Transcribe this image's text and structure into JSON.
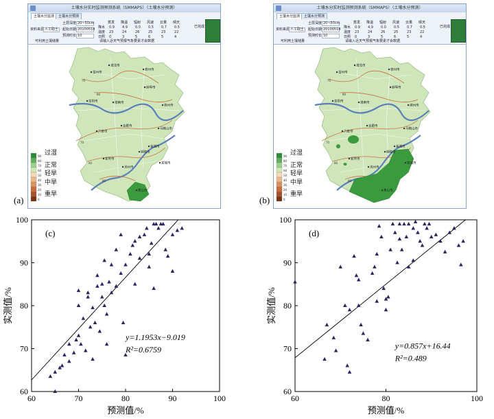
{
  "map_panels": [
    {
      "panel_label": "(a)",
      "window_title": "土壤水分实时监测预测系统（SMMAPS）（土壤水分预测）",
      "tabs": [
        "土壤水分监测",
        "土壤水分预测"
      ],
      "source_label": "资料来源",
      "source_value": "人工取土",
      "soil_depth_label": "土层深度",
      "soil_depth_value": "20~50cm",
      "start_date_label": "起始日期",
      "start_date_value": "20100518",
      "forecast_len_label": "预测时长",
      "forecast_len_value": "10",
      "weather_rows": [
        {
          "label": "降水",
          "values": [
            "0.9",
            "4.9",
            "0.0",
            "0.5",
            "0.7",
            "0.5"
          ]
        },
        {
          "label": "温度",
          "values": [
            "23",
            "24",
            "26",
            "25",
            "23",
            "22"
          ]
        },
        {
          "label": "日照",
          "values": [
            "0",
            "3",
            "5",
            "6",
            "5",
            "4"
          ]
        }
      ],
      "weather_headers": [
        "蒸发",
        "降温",
        "辐射",
        "风速",
        "云量",
        "晴天"
      ],
      "side_button": "已完成",
      "status_text": "请输入近天气预报气象要素才会数据",
      "status_left": "可利用土壤储量",
      "has_big_green": false
    },
    {
      "panel_label": "(b)",
      "window_title": "土壤水分实时监测预测系统（SMMAPS）（土壤水分预测）",
      "tabs": [
        "土壤水分监测",
        "土壤水分预测"
      ],
      "source_label": "资料来源",
      "source_value": "人工取土",
      "soil_depth_label": "土层深度",
      "soil_depth_value": "20~50cm",
      "start_date_label": "起始日期",
      "start_date_value": "20100518",
      "forecast_len_label": "预测时长",
      "forecast_len_value": "10",
      "weather_rows": [
        {
          "label": "降水",
          "values": [
            "0.9",
            "4.9",
            "0.0",
            "0.5",
            "0.7",
            "0.5"
          ]
        },
        {
          "label": "温度",
          "values": [
            "23",
            "24",
            "26",
            "25",
            "23",
            "22"
          ]
        },
        {
          "label": "日照",
          "values": [
            "0",
            "3",
            "5",
            "6",
            "5",
            "4"
          ]
        }
      ],
      "weather_headers": [
        "蒸发",
        "降温",
        "辐射",
        "风速",
        "云量",
        "晴天"
      ],
      "side_button": "已完成",
      "status_text": "请输入近天气预报气象要素才会数据",
      "status_left": "可利用土壤储量",
      "has_big_green": true
    }
  ],
  "legend": {
    "numbers": [
      "90",
      "80",
      "70",
      "60",
      "50",
      "40",
      "30",
      "20",
      "10",
      "0"
    ],
    "classes": [
      "过湿",
      "正常",
      "轻旱",
      "中旱",
      "重旱"
    ],
    "colors": [
      "#2e8b3a",
      "#5db05a",
      "#9fd08a",
      "#cfe8b5",
      "#f3d9b5",
      "#eab98a",
      "#d9925e",
      "#c76d3a",
      "#a8502a",
      "#7a3412"
    ]
  },
  "map_text": {
    "isolines": [
      "70",
      "70",
      "80",
      "80",
      "80"
    ],
    "cities": [
      "淮北市",
      "宿州市",
      "蚌埠市",
      "阜阳市",
      "淮南市",
      "滁州市",
      "六安市",
      "合肥市",
      "马鞍山市",
      "芜湖市",
      "安庆市",
      "池州市",
      "铜陵市",
      "宣城市",
      "黄山市",
      "亳州市"
    ]
  },
  "chart_data": [
    {
      "panel_label": "(c)",
      "type": "scatter",
      "xlabel": "预测值/%",
      "ylabel": "实测值/%",
      "xlim": [
        60,
        100
      ],
      "ylim": [
        60,
        100
      ],
      "xticks": [
        60,
        70,
        80,
        90,
        100
      ],
      "yticks": [
        60,
        70,
        80,
        90,
        100
      ],
      "equation": "y=1.1953x−9.019",
      "r2": "R²=0.6759",
      "fit": {
        "slope": 1.1953,
        "intercept": -9.019
      },
      "points": [
        [
          64,
          63.5
        ],
        [
          65,
          60
        ],
        [
          65,
          64.5
        ],
        [
          66,
          65.5
        ],
        [
          66.5,
          66
        ],
        [
          67,
          68.5
        ],
        [
          68,
          71
        ],
        [
          68,
          67
        ],
        [
          69,
          69
        ],
        [
          69.5,
          72
        ],
        [
          70,
          73
        ],
        [
          70,
          80
        ],
        [
          70,
          83.5
        ],
        [
          70.5,
          71
        ],
        [
          71,
          77
        ],
        [
          71.5,
          69.5
        ],
        [
          72,
          83
        ],
        [
          72,
          82
        ],
        [
          72.5,
          75
        ],
        [
          73,
          67.5
        ],
        [
          73,
          79.5
        ],
        [
          73.5,
          76
        ],
        [
          74,
          84.5
        ],
        [
          74,
          87
        ],
        [
          74.5,
          74
        ],
        [
          75,
          85
        ],
        [
          75,
          82
        ],
        [
          75.5,
          90.5
        ],
        [
          75.5,
          80
        ],
        [
          76,
          78
        ],
        [
          76,
          71
        ],
        [
          76.5,
          85.5
        ],
        [
          77,
          89.5
        ],
        [
          77,
          83
        ],
        [
          78,
          93
        ],
        [
          78,
          84.5
        ],
        [
          79,
          96.5
        ],
        [
          79,
          87.5
        ],
        [
          79.5,
          76
        ],
        [
          80,
          89.5
        ],
        [
          80,
          68.5
        ],
        [
          81,
          92
        ],
        [
          81.5,
          94
        ],
        [
          82,
          95
        ],
        [
          82,
          85
        ],
        [
          83,
          96
        ],
        [
          83,
          91
        ],
        [
          84,
          96.5
        ],
        [
          84.5,
          98
        ],
        [
          85,
          92
        ],
        [
          85,
          89
        ],
        [
          85.5,
          94.5
        ],
        [
          86,
          99
        ],
        [
          86.5,
          99
        ],
        [
          86,
          84
        ],
        [
          87,
          98
        ],
        [
          87.5,
          99
        ],
        [
          88,
          99
        ],
        [
          88.5,
          93
        ],
        [
          89,
          91.5
        ],
        [
          90,
          96.5
        ],
        [
          90,
          88
        ],
        [
          91,
          97.5
        ],
        [
          92,
          98
        ]
      ]
    },
    {
      "panel_label": "(d)",
      "type": "scatter",
      "xlabel": "预测值/%",
      "ylabel": "实测值/%",
      "xlim": [
        60,
        100
      ],
      "ylim": [
        60,
        100
      ],
      "xticks": [
        60,
        80,
        100
      ],
      "yticks": [
        60,
        70,
        80,
        90,
        100
      ],
      "equation": "y=0.857x+16.44",
      "r2": "R²=0.489",
      "fit": {
        "slope": 0.857,
        "intercept": 16.44
      },
      "points": [
        [
          60,
          85.5
        ],
        [
          66.5,
          67.5
        ],
        [
          67,
          75.5
        ],
        [
          68.5,
          72.5
        ],
        [
          69,
          69.5
        ],
        [
          70,
          89
        ],
        [
          71,
          80
        ],
        [
          71.5,
          66
        ],
        [
          72,
          64.5
        ],
        [
          72,
          79
        ],
        [
          73,
          91.5
        ],
        [
          73.5,
          87
        ],
        [
          74,
          86
        ],
        [
          74,
          80
        ],
        [
          74.5,
          75.5
        ],
        [
          75,
          73.5
        ],
        [
          76,
          72
        ],
        [
          77,
          87.5
        ],
        [
          77.5,
          89
        ],
        [
          78,
          81
        ],
        [
          78,
          92
        ],
        [
          78.5,
          98.5
        ],
        [
          79,
          96
        ],
        [
          79.5,
          84
        ],
        [
          80,
          81.5
        ],
        [
          80,
          79
        ],
        [
          80.5,
          82
        ],
        [
          81,
          93
        ],
        [
          81.5,
          99
        ],
        [
          82,
          97
        ],
        [
          82.5,
          90
        ],
        [
          83,
          99
        ],
        [
          83,
          95.5
        ],
        [
          83.5,
          93
        ],
        [
          84,
          99
        ],
        [
          84.5,
          96
        ],
        [
          85,
          99
        ],
        [
          85,
          89
        ],
        [
          86,
          98
        ],
        [
          86,
          90.5
        ],
        [
          86.5,
          99.5
        ],
        [
          87,
          97
        ],
        [
          87.5,
          95
        ],
        [
          88,
          94
        ],
        [
          88.5,
          99
        ],
        [
          89,
          98
        ],
        [
          89.5,
          99
        ],
        [
          90,
          96
        ],
        [
          91,
          96.5
        ],
        [
          92,
          95
        ],
        [
          93,
          92.5
        ],
        [
          94,
          97
        ],
        [
          95,
          98
        ],
        [
          96,
          94
        ],
        [
          96.5,
          89.5
        ],
        [
          97,
          95
        ]
      ]
    }
  ]
}
